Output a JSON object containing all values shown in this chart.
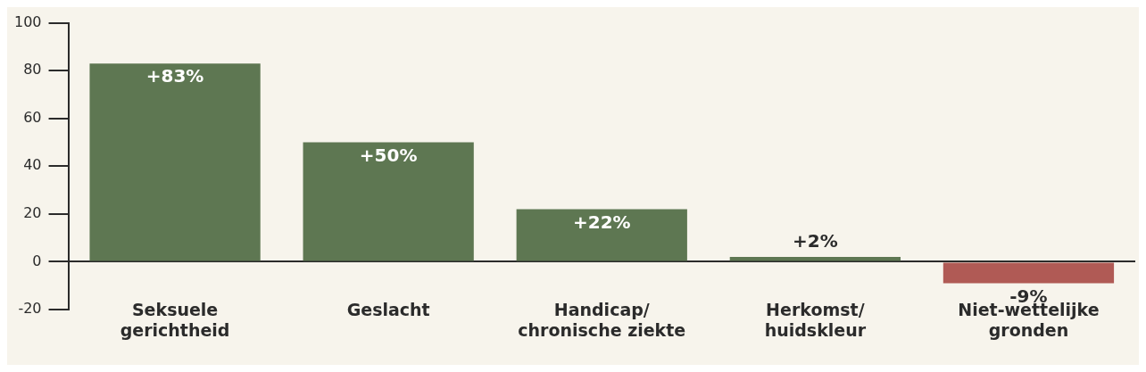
{
  "chart_data": {
    "type": "bar",
    "categories": [
      "Seksuele gerichtheid",
      "Geslacht",
      "Handicap/ chronische ziekte",
      "Herkomst/ huidskleur",
      "Niet-wettelijke gronden"
    ],
    "values": [
      83,
      50,
      22,
      2,
      -9
    ],
    "colors": [
      "#5e7752",
      "#5e7752",
      "#5e7752",
      "#5e7752",
      "#b05a55"
    ],
    "value_labels": [
      "+83%",
      "+50%",
      "+22%",
      "+2%",
      "-9%"
    ],
    "ylim": [
      -20,
      100
    ],
    "yticks": [
      -20,
      0,
      20,
      40,
      60,
      80,
      100
    ],
    "grid": false,
    "legend": false
  }
}
